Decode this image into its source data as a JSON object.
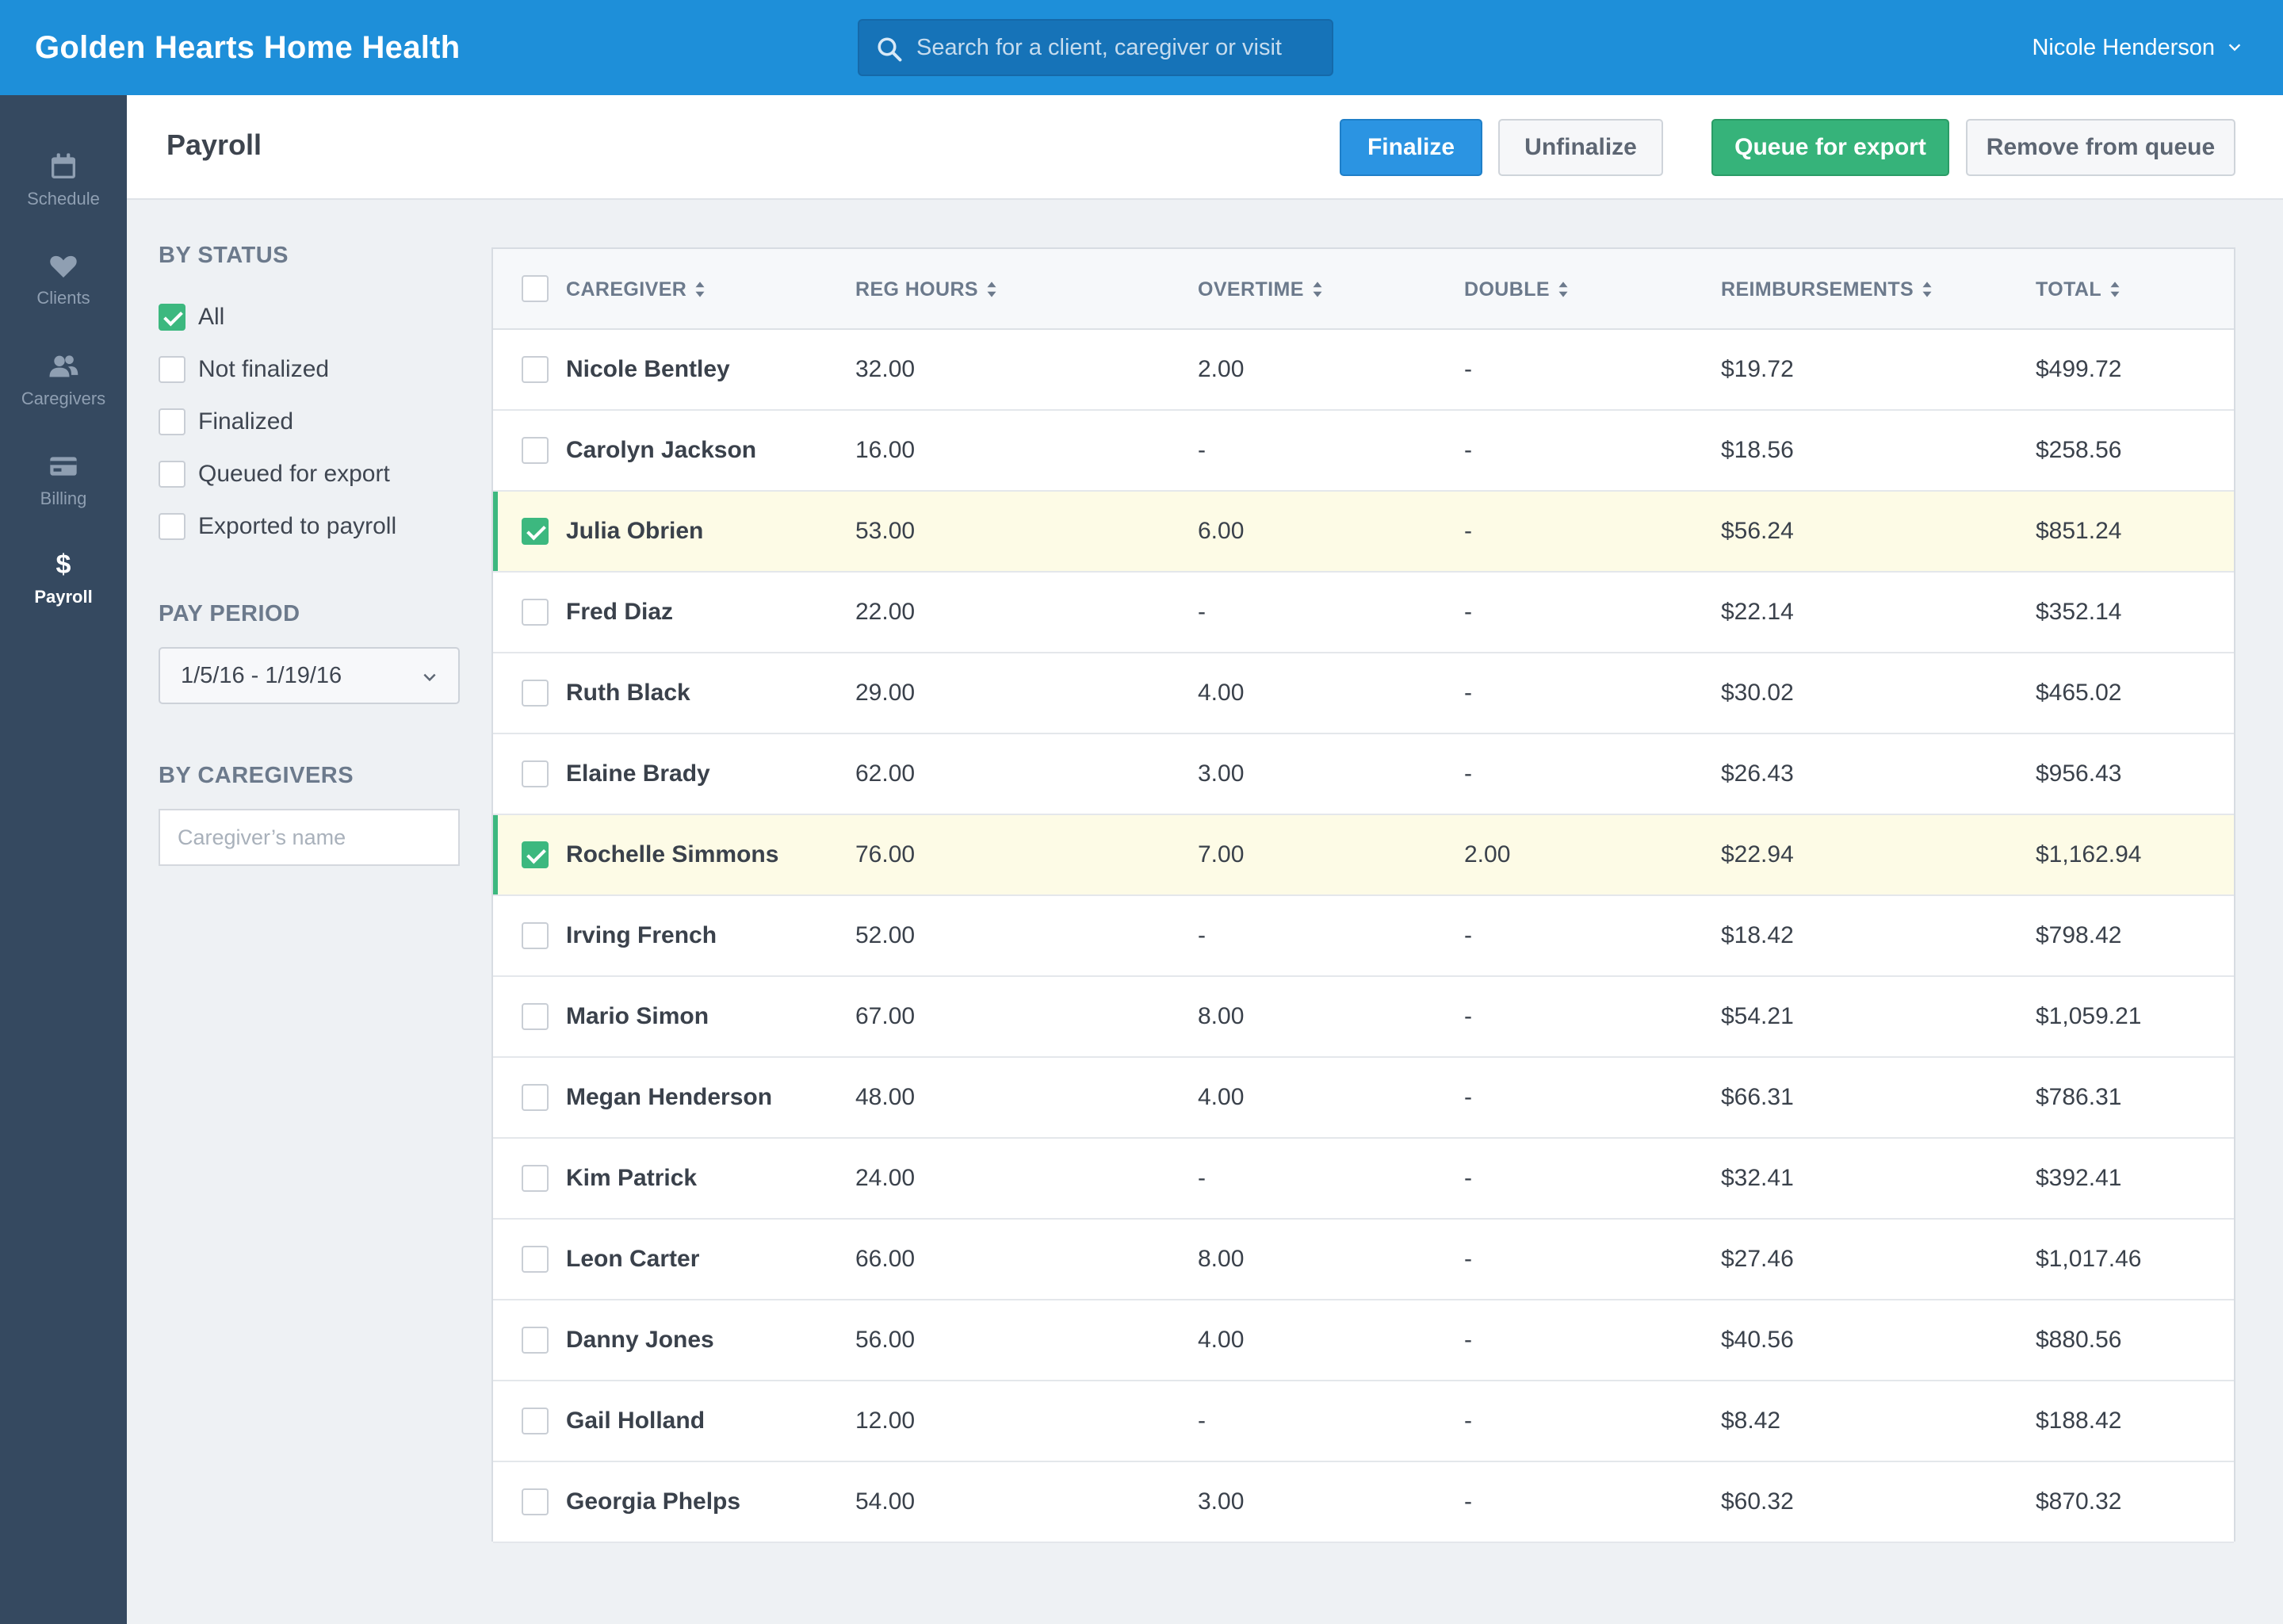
{
  "app": {
    "title": "Golden Hearts Home Health"
  },
  "search": {
    "placeholder": "Search for a client, caregiver or visit"
  },
  "user": {
    "name": "Nicole Henderson"
  },
  "nav": {
    "items": [
      {
        "label": "Schedule",
        "icon": "calendar-icon"
      },
      {
        "label": "Clients",
        "icon": "heart-icon"
      },
      {
        "label": "Caregivers",
        "icon": "users-icon"
      },
      {
        "label": "Billing",
        "icon": "credit-card-icon"
      },
      {
        "label": "Payroll",
        "icon": "dollar-icon",
        "active": true
      }
    ]
  },
  "page": {
    "title": "Payroll",
    "actions": {
      "finalize": "Finalize",
      "unfinalize": "Unfinalize",
      "queue": "Queue for export",
      "remove": "Remove from queue"
    }
  },
  "filters": {
    "status_heading": "BY STATUS",
    "status_options": [
      {
        "label": "All",
        "checked": true
      },
      {
        "label": "Not finalized",
        "checked": false
      },
      {
        "label": "Finalized",
        "checked": false
      },
      {
        "label": "Queued for export",
        "checked": false
      },
      {
        "label": "Exported to payroll",
        "checked": false
      }
    ],
    "pay_period_heading": "PAY PERIOD",
    "pay_period_value": "1/5/16 - 1/19/16",
    "caregivers_heading": "BY CAREGIVERS",
    "caregiver_placeholder": "Caregiver’s name"
  },
  "table": {
    "columns": {
      "caregiver": "CAREGIVER",
      "reg_hours": "REG HOURS",
      "overtime": "OVERTIME",
      "double": "DOUBLE",
      "reimbursements": "REIMBURSEMENTS",
      "total": "TOTAL"
    },
    "rows": [
      {
        "name": "Nicole Bentley",
        "reg": "32.00",
        "ot": "2.00",
        "dbl": "-",
        "reimb": "$19.72",
        "total": "$499.72",
        "selected": false
      },
      {
        "name": "Carolyn Jackson",
        "reg": "16.00",
        "ot": "-",
        "dbl": "-",
        "reimb": "$18.56",
        "total": "$258.56",
        "selected": false
      },
      {
        "name": "Julia Obrien",
        "reg": "53.00",
        "ot": "6.00",
        "dbl": "-",
        "reimb": "$56.24",
        "total": "$851.24",
        "selected": true
      },
      {
        "name": "Fred Diaz",
        "reg": "22.00",
        "ot": "-",
        "dbl": "-",
        "reimb": "$22.14",
        "total": "$352.14",
        "selected": false
      },
      {
        "name": "Ruth Black",
        "reg": "29.00",
        "ot": "4.00",
        "dbl": "-",
        "reimb": "$30.02",
        "total": "$465.02",
        "selected": false
      },
      {
        "name": "Elaine Brady",
        "reg": "62.00",
        "ot": "3.00",
        "dbl": "-",
        "reimb": "$26.43",
        "total": "$956.43",
        "selected": false
      },
      {
        "name": "Rochelle Simmons",
        "reg": "76.00",
        "ot": "7.00",
        "dbl": "2.00",
        "reimb": "$22.94",
        "total": "$1,162.94",
        "selected": true
      },
      {
        "name": "Irving French",
        "reg": "52.00",
        "ot": "-",
        "dbl": "-",
        "reimb": "$18.42",
        "total": "$798.42",
        "selected": false
      },
      {
        "name": "Mario Simon",
        "reg": "67.00",
        "ot": "8.00",
        "dbl": "-",
        "reimb": "$54.21",
        "total": "$1,059.21",
        "selected": false
      },
      {
        "name": "Megan Henderson",
        "reg": "48.00",
        "ot": "4.00",
        "dbl": "-",
        "reimb": "$66.31",
        "total": "$786.31",
        "selected": false
      },
      {
        "name": "Kim Patrick",
        "reg": "24.00",
        "ot": "-",
        "dbl": "-",
        "reimb": "$32.41",
        "total": "$392.41",
        "selected": false
      },
      {
        "name": "Leon Carter",
        "reg": "66.00",
        "ot": "8.00",
        "dbl": "-",
        "reimb": "$27.46",
        "total": "$1,017.46",
        "selected": false
      },
      {
        "name": "Danny Jones",
        "reg": "56.00",
        "ot": "4.00",
        "dbl": "-",
        "reimb": "$40.56",
        "total": "$880.56",
        "selected": false
      },
      {
        "name": "Gail Holland",
        "reg": "12.00",
        "ot": "-",
        "dbl": "-",
        "reimb": "$8.42",
        "total": "$188.42",
        "selected": false
      },
      {
        "name": "Georgia Phelps",
        "reg": "54.00",
        "ot": "3.00",
        "dbl": "-",
        "reimb": "$60.32",
        "total": "$870.32",
        "selected": false
      }
    ]
  },
  "colors": {
    "brand": "#1e8fd9",
    "sidebar": "#354960",
    "success": "#3cb87f",
    "selected_row": "#fdfbe6"
  }
}
